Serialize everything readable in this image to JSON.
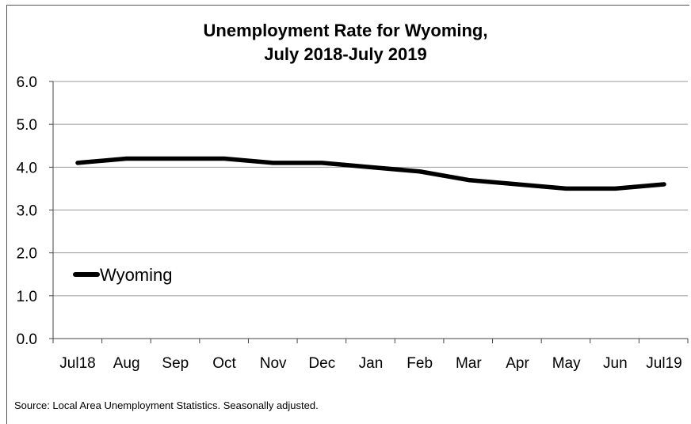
{
  "chart_data": {
    "type": "line",
    "title_line1": "Unemployment Rate for Wyoming,",
    "title_line2": "July 2018-July 2019",
    "categories": [
      "Jul18",
      "Aug",
      "Sep",
      "Oct",
      "Nov",
      "Dec",
      "Jan",
      "Feb",
      "Mar",
      "Apr",
      "May",
      "Jun",
      "Jul19"
    ],
    "series": [
      {
        "name": "Wyoming",
        "values": [
          4.1,
          4.2,
          4.2,
          4.2,
          4.1,
          4.1,
          4.0,
          3.9,
          3.7,
          3.6,
          3.5,
          3.5,
          3.6
        ]
      }
    ],
    "y_ticks": [
      "0.0",
      "1.0",
      "2.0",
      "3.0",
      "4.0",
      "5.0",
      "6.0"
    ],
    "ylim": [
      0,
      6
    ],
    "grid": true,
    "legend_position": "left",
    "line_color": "#000000",
    "grid_color": "#999999"
  },
  "source": "Source: Local Area Unemployment Statistics. Seasonally adjusted."
}
